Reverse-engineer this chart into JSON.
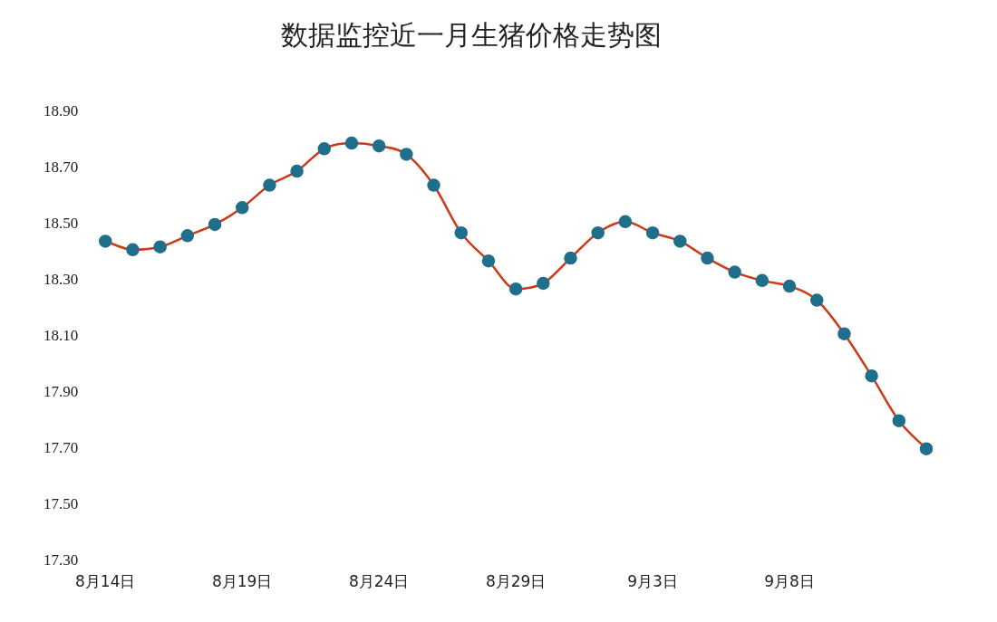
{
  "chart_data": {
    "type": "line",
    "title": "数据监控近一月生猪价格走势图",
    "categories": [
      "8月14日",
      null,
      null,
      null,
      null,
      "8月19日",
      null,
      null,
      null,
      null,
      "8月24日",
      null,
      null,
      null,
      null,
      "8月29日",
      null,
      null,
      null,
      null,
      "9月3日",
      null,
      null,
      null,
      null,
      "9月8日",
      null,
      null,
      null,
      null,
      null
    ],
    "series": [
      {
        "color": "#cc3a1a",
        "colors": [
          "#1f6f8b",
          "#1f6f8b",
          "#1f6f8b",
          "#1f6f8b",
          "#1f6f8b",
          "#1f6f8b",
          "#1f6f8b",
          "#1f6f8b",
          "#1f6f8b",
          "#1f6f8b",
          "#1f6f8b",
          "#1f6f8b",
          "#1f6f8b",
          "#1f6f8b",
          "#1f6f8b",
          "#1f6f8b",
          "#1f6f8b",
          "#1f6f8b",
          "#1f6f8b",
          "#1f6f8b",
          "#1f6f8b",
          "#1f6f8b",
          "#1f6f8b",
          "#1f6f8b",
          "#1f6f8b",
          "#1f6f8b",
          "#1f6f8b",
          "#1f6f8b",
          "#1f6f8b",
          "#1f6f8b",
          "#1f6f8b"
        ],
        "values": [
          18.44,
          18.41,
          18.42,
          18.46,
          18.5,
          18.56,
          18.64,
          18.69,
          18.77,
          18.79,
          18.78,
          18.75,
          18.64,
          18.47,
          18.37,
          18.27,
          18.29,
          18.38,
          18.47,
          18.51,
          18.47,
          18.44,
          18.38,
          18.33,
          18.3,
          18.28,
          18.23,
          18.11,
          17.96,
          17.8,
          17.7
        ]
      }
    ],
    "ylim": [
      17.3,
      18.9
    ],
    "yticks": [
      {
        "value": 17.3,
        "label": "17.30"
      },
      {
        "value": 17.5,
        "label": "17.50"
      },
      {
        "value": 17.7,
        "label": "17.70"
      },
      {
        "value": 17.9,
        "label": "17.90"
      },
      {
        "value": 18.1,
        "label": "18.10"
      },
      {
        "value": 18.3,
        "label": "18.30"
      },
      {
        "value": 18.5,
        "label": "18.50"
      },
      {
        "value": 18.7,
        "label": "18.70"
      },
      {
        "value": 18.9,
        "label": "18.90"
      }
    ],
    "grid": false,
    "legend": false,
    "marker": "circle",
    "line_style": "solid"
  }
}
